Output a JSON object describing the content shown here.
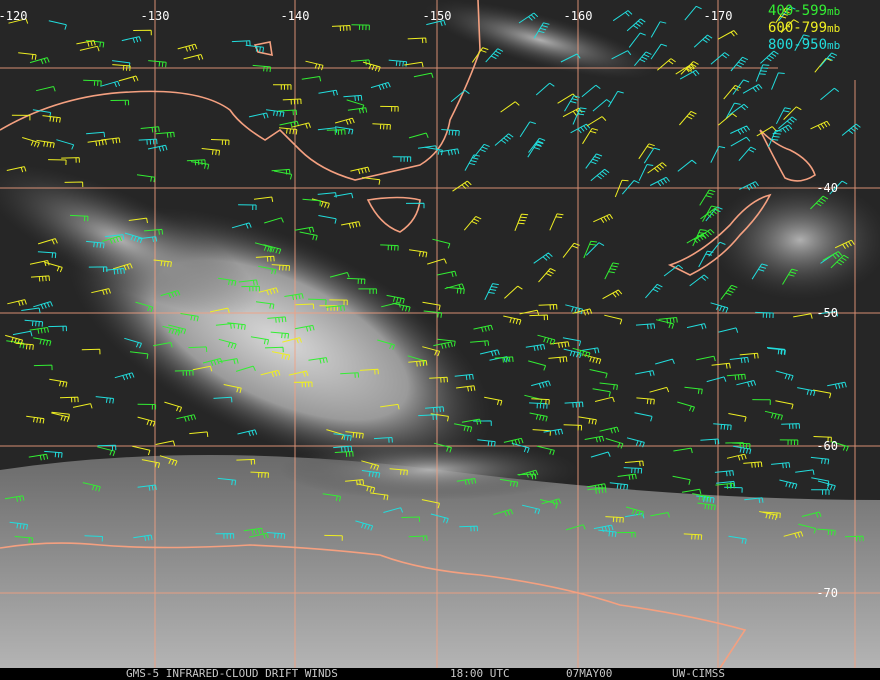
{
  "map": {
    "longitude_labels": [
      "-120",
      "-130",
      "-140",
      "-150",
      "-160",
      "-170"
    ],
    "latitude_labels": [
      "-40",
      "-50",
      "-60",
      "-70"
    ],
    "legend": [
      {
        "label": "400-599",
        "unit": "mb",
        "color": "#33ee33"
      },
      {
        "label": "600-799",
        "unit": "mb",
        "color": "#eeee22"
      },
      {
        "label": "800-950",
        "unit": "mb",
        "color": "#22dddd"
      }
    ],
    "footer": {
      "satellite": "GMS-5 INFRARED-CLOUD DRIFT WINDS",
      "time": "18:00 UTC",
      "date": "07MAY00",
      "source": "UW-CIMSS"
    }
  }
}
